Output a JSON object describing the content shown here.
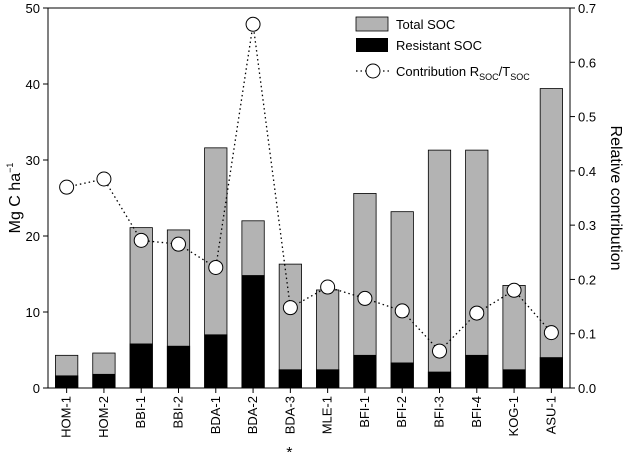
{
  "chart_data": {
    "type": "bar",
    "categories": [
      "HOM-1",
      "HOM-2",
      "BBI-1",
      "BBI-2",
      "BDA-1",
      "BDA-2",
      "BDA-3",
      "MLE-1",
      "BFI-1",
      "BFI-2",
      "BFI-3",
      "BFI-4",
      "KOG-1",
      "ASU-1"
    ],
    "asterisk_category": "BDA-3",
    "asterisk_text": "*",
    "series": [
      {
        "name": "Total SOC",
        "axis": "left",
        "color": "#b3b3b3",
        "values": [
          4.3,
          4.6,
          21.1,
          20.8,
          31.6,
          22.0,
          16.3,
          12.9,
          25.6,
          23.2,
          31.3,
          31.3,
          13.5,
          39.4
        ]
      },
      {
        "name": "Resistant SOC",
        "axis": "left",
        "color": "#000000",
        "values": [
          1.6,
          1.8,
          5.8,
          5.5,
          7.0,
          14.8,
          2.4,
          2.4,
          4.3,
          3.3,
          2.1,
          4.3,
          2.4,
          4.0
        ]
      },
      {
        "name": "Contribution",
        "axis": "right",
        "style": "dotted-line-open-circles",
        "values": [
          0.37,
          0.385,
          0.272,
          0.265,
          0.222,
          0.67,
          0.148,
          0.186,
          0.165,
          0.142,
          0.068,
          0.138,
          0.18,
          0.102
        ]
      }
    ],
    "legend": {
      "position": "top-right",
      "entries": [
        {
          "label": "Total SOC",
          "kind": "gray-box"
        },
        {
          "label": "Resistant SOC",
          "kind": "black-box"
        },
        {
          "label_main": "Contribution R",
          "label_sub1": "SOC",
          "label_mid": "/T",
          "label_sub2": "SOC",
          "kind": "circle-dotted"
        }
      ]
    },
    "y_left": {
      "label_main": "Mg C ha",
      "label_sup": "−1",
      "lim": [
        0,
        50
      ],
      "ticks": [
        0,
        10,
        20,
        30,
        40,
        50
      ]
    },
    "y_right": {
      "label": "Relative contribution",
      "lim": [
        0,
        0.7
      ],
      "ticks": [
        "0.0",
        "0.1",
        "0.2",
        "0.3",
        "0.4",
        "0.5",
        "0.6",
        "0.7"
      ]
    },
    "grid": false
  }
}
